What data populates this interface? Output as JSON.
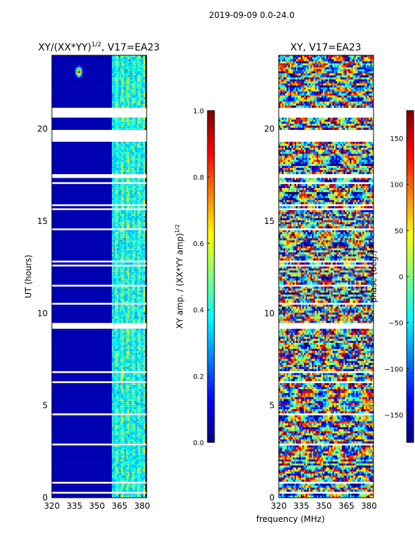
{
  "figure": {
    "suptitle": "2019-09-09 0.0-24.0",
    "shared_xlabel": "frequency (MHz)"
  },
  "colors": {
    "jet": [
      "#00007f",
      "#0000ff",
      "#007fff",
      "#00ffff",
      "#7fff7f",
      "#ffff00",
      "#ff7f00",
      "#ff0000",
      "#7f0000"
    ],
    "flag_gap": "#ffffff",
    "frame": "#000000"
  },
  "chart_data": [
    {
      "type": "heatmap",
      "title_main": "XY/(XX*YY)",
      "title_exp": "1/2",
      "title_tail": ", V17=EA23",
      "xlabel": "",
      "ylabel": "UT (hours)",
      "xlim": [
        320,
        383
      ],
      "ylim": [
        0,
        24
      ],
      "xticks": [
        320,
        335,
        350,
        365,
        380
      ],
      "yticks": [
        0,
        5,
        10,
        15,
        20
      ],
      "colorbar": {
        "label_main": "XY amp. / (XX*YY amp)",
        "label_exp": "1/2",
        "range": [
          0.0,
          1.0
        ],
        "ticks": [
          "0.0",
          "0.2",
          "0.4",
          "0.6",
          "0.8",
          "1.0"
        ]
      },
      "description_of_values": {
        "background_value": 0.05,
        "active_band_mhz": [
          360,
          382
        ],
        "active_band_values_range": [
          0.3,
          0.65
        ],
        "hotspot": {
          "freq_mhz": 338,
          "ut_hours": 23.1,
          "value": 1.0
        }
      }
    },
    {
      "type": "heatmap",
      "title_main": "XY, V17=EA23",
      "xlabel": "",
      "ylabel": "",
      "xlim": [
        320,
        383
      ],
      "ylim": [
        0,
        24
      ],
      "xticks": [
        320,
        335,
        350,
        365,
        380
      ],
      "yticks": [
        0,
        5,
        10,
        15,
        20
      ],
      "colorbar": {
        "label": "phase (deg.)",
        "range": [
          -180,
          180
        ],
        "ticks": [
          "-150",
          "-100",
          "-50",
          "0",
          "50",
          "100",
          "150"
        ]
      }
    }
  ]
}
